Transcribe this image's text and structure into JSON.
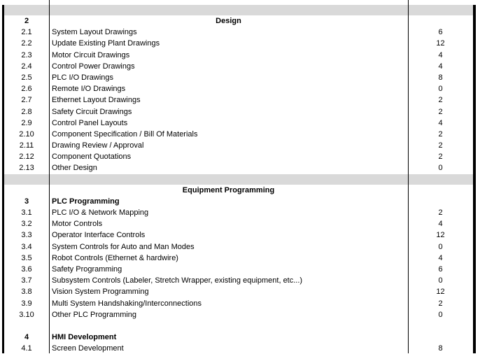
{
  "colors": {
    "separator_gray": "#d9d9d9",
    "grid_black": "#000000",
    "background": "#ffffff"
  },
  "rows": [
    {
      "kind": "spacer_gray"
    },
    {
      "kind": "section_title",
      "num": "2",
      "title": "Design",
      "hours": ""
    },
    {
      "kind": "item",
      "num": "2.1",
      "desc": "System Layout Drawings",
      "hours": "6"
    },
    {
      "kind": "item",
      "num": "2.2",
      "desc": "Update Existing Plant Drawings",
      "hours": "12"
    },
    {
      "kind": "item",
      "num": "2.3",
      "desc": "Motor Circuit Drawings",
      "hours": "4"
    },
    {
      "kind": "item",
      "num": "2.4",
      "desc": "Control Power Drawings",
      "hours": "4"
    },
    {
      "kind": "item",
      "num": "2.5",
      "desc": "PLC I/O Drawings",
      "hours": "8"
    },
    {
      "kind": "item",
      "num": "2.6",
      "desc": "Remote I/O Drawings",
      "hours": "0"
    },
    {
      "kind": "item",
      "num": "2.7",
      "desc": "Ethernet Layout Drawings",
      "hours": "2"
    },
    {
      "kind": "item",
      "num": "2.8",
      "desc": "Safety Circuit Drawings",
      "hours": "2"
    },
    {
      "kind": "item",
      "num": "2.9",
      "desc": "Control Panel Layouts",
      "hours": "4"
    },
    {
      "kind": "item",
      "num": "2.10",
      "desc": "Component Specification / Bill Of Materials",
      "hours": "2"
    },
    {
      "kind": "item",
      "num": "2.11",
      "desc": "Drawing Review / Approval",
      "hours": "2"
    },
    {
      "kind": "item",
      "num": "2.12",
      "desc": "Component Quotations",
      "hours": "2"
    },
    {
      "kind": "item",
      "num": "2.13",
      "desc": "Other Design",
      "hours": "0"
    },
    {
      "kind": "spacer_gray"
    },
    {
      "kind": "section_title",
      "num": "",
      "title": "Equipment Programming",
      "hours": ""
    },
    {
      "kind": "group_header",
      "num": "3",
      "title": "PLC Programming",
      "hours": ""
    },
    {
      "kind": "item",
      "num": "3.1",
      "desc": "PLC I/O & Network Mapping",
      "hours": "2"
    },
    {
      "kind": "item",
      "num": "3.2",
      "desc": "Motor Controls",
      "hours": "4"
    },
    {
      "kind": "item",
      "num": "3.3",
      "desc": "Operator Interface Controls",
      "hours": "12"
    },
    {
      "kind": "item",
      "num": "3.4",
      "desc": "System Controls for Auto and Man Modes",
      "hours": "0"
    },
    {
      "kind": "item",
      "num": "3.5",
      "desc": "Robot Controls (Ethernet & hardwire)",
      "hours": "4"
    },
    {
      "kind": "item",
      "num": "3.6",
      "desc": "Safety Programming",
      "hours": "6"
    },
    {
      "kind": "item",
      "num": "3.7",
      "desc": "Subsystem Controls (Labeler, Stretch Wrapper, existing equipment, etc...)",
      "hours": "0"
    },
    {
      "kind": "item",
      "num": "3.8",
      "desc": "Vision System Programming",
      "hours": "12"
    },
    {
      "kind": "item",
      "num": "3.9",
      "desc": "Multi System Handshaking/Interconnections",
      "hours": "2"
    },
    {
      "kind": "item",
      "num": "3.10",
      "desc": "Other PLC Programming",
      "hours": "0"
    },
    {
      "kind": "spacer_blank"
    },
    {
      "kind": "group_header",
      "num": "4",
      "title": "HMI Development",
      "hours": ""
    },
    {
      "kind": "item",
      "num": "4.1",
      "desc": "Screen Development",
      "hours": "8"
    }
  ]
}
